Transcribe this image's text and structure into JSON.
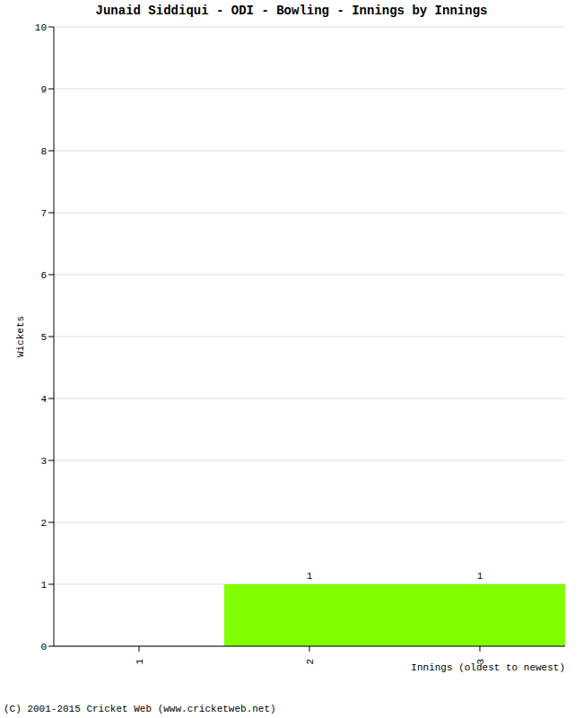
{
  "chart_data": {
    "type": "bar",
    "title": "Junaid Siddiqui - ODI - Bowling - Innings by Innings",
    "categories": [
      "1",
      "2",
      "3"
    ],
    "values": [
      0,
      1,
      1
    ],
    "color": "#80ff00",
    "ylim": [
      0,
      10
    ],
    "yticks": [
      0,
      1,
      2,
      3,
      4,
      5,
      6,
      7,
      8,
      9,
      10
    ],
    "grid": true,
    "data_labels": true,
    "xlabel": "Innings (oldest to newest)",
    "ylabel": "Wickets",
    "footer": "(C) 2001-2015 Cricket Web (www.cricketweb.net)"
  }
}
